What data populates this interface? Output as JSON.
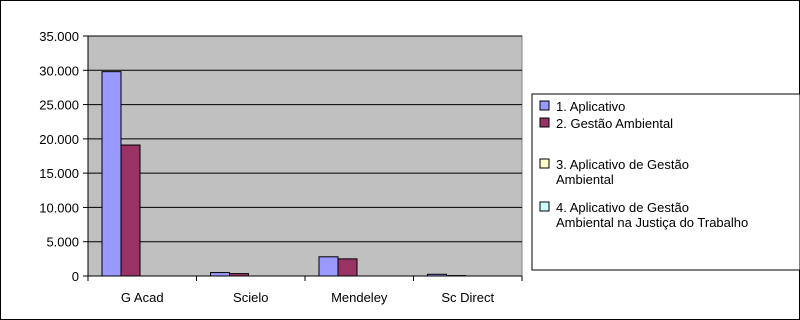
{
  "chart_data": {
    "type": "bar",
    "categories": [
      "G Acad",
      "Scielo",
      "Mendeley",
      "Sc Direct"
    ],
    "series": [
      {
        "name": "1. Aplicativo",
        "values": [
          29800,
          500,
          2800,
          250
        ],
        "color": "#9999FF"
      },
      {
        "name": "2. Gestão Ambiental",
        "values": [
          19100,
          350,
          2500,
          60
        ],
        "color": "#993366"
      },
      {
        "name": "3. Aplicativo de Gestão Ambiental",
        "values": [
          0,
          0,
          0,
          0
        ],
        "color": "#FFFFCC"
      },
      {
        "name": "4. Aplicativo de Gestão Ambiental na Justiça do Trabalho",
        "values": [
          0,
          0,
          0,
          0
        ],
        "color": "#CCFFFF"
      }
    ],
    "legend_labels": [
      [
        "1. Aplicativo"
      ],
      [
        "2. Gestão Ambiental"
      ],
      [
        "3. Aplicativo de Gestão",
        "Ambiental"
      ],
      [
        "4. Aplicativo de Gestão",
        "Ambiental na Justiça do Trabalho"
      ]
    ],
    "ylim": [
      0,
      35000
    ],
    "yticks": [
      0,
      5000,
      10000,
      15000,
      20000,
      25000,
      30000,
      35000
    ],
    "ytick_labels": [
      "0",
      "5.000",
      "10.000",
      "15.000",
      "20.000",
      "25.000",
      "30.000",
      "35.000"
    ],
    "grid": true,
    "legend_position": "right",
    "plot_background": "#C0C0C0",
    "title": "",
    "xlabel": "",
    "ylabel": ""
  }
}
